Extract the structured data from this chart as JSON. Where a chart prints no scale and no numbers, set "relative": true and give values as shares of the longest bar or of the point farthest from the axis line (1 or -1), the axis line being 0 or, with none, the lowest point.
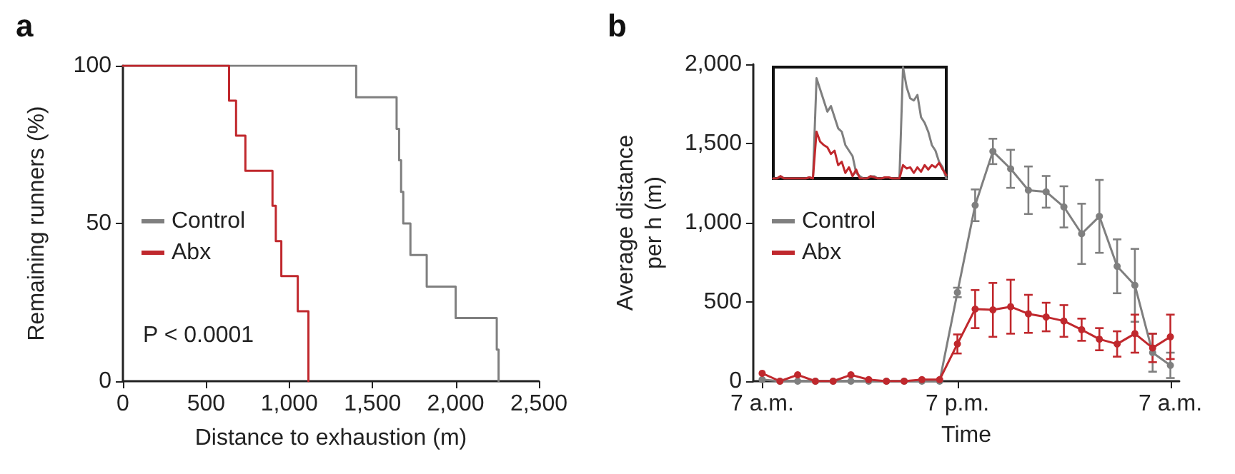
{
  "chart_data": [
    {
      "type": "step",
      "title": "a",
      "xlabel": "Distance to exhaustion (m)",
      "ylabel": "Remaining runners (%)",
      "xlim": [
        0,
        2500
      ],
      "xticks": [
        0,
        500,
        {
          "value": 1000,
          "label": "1,000"
        },
        {
          "value": 1500,
          "label": "1,500"
        },
        {
          "value": 2000,
          "label": "2,000"
        },
        {
          "value": 2500,
          "label": "2,500"
        }
      ],
      "ylim": [
        0,
        100
      ],
      "yticks": [
        0,
        50,
        100
      ],
      "grid": false,
      "legend": "center left",
      "marker": "none",
      "line_style": "solid",
      "annotations": [
        "P < 0.0001"
      ],
      "series": [
        {
          "name": "Control",
          "color": "#7f7f7f",
          "x": [
            0,
            1402,
            1645,
            1660,
            1672,
            1685,
            1728,
            1826,
            2000,
            2247,
            2258
          ],
          "values": [
            100,
            90,
            80,
            70,
            60,
            50,
            40,
            30,
            20,
            10,
            0
          ]
        },
        {
          "name": "Abx",
          "color": "#c0282d",
          "x": [
            0,
            638,
            680,
            736,
            899,
            919,
            952,
            1051,
            1115
          ],
          "values": [
            100,
            88.9,
            77.8,
            66.7,
            55.6,
            44.4,
            33.3,
            22.2,
            0
          ]
        }
      ]
    },
    {
      "type": "line",
      "title": "b",
      "xlabel": "Time",
      "ylabel": "Average distance\nper h (m)",
      "categories": [
        "7 a.m.",
        null,
        null,
        null,
        null,
        null,
        null,
        null,
        null,
        null,
        null,
        "7 p.m.",
        null,
        null,
        null,
        null,
        null,
        null,
        null,
        null,
        null,
        null,
        null,
        "7 a.m."
      ],
      "ylim": [
        0,
        2000
      ],
      "yticks": [
        0,
        {
          "value": 500,
          "label": "500"
        },
        {
          "value": 1000,
          "label": "1,000"
        },
        {
          "value": 1500,
          "label": "1,500"
        },
        {
          "value": 2000,
          "label": "2,000"
        }
      ],
      "grid": false,
      "legend": "center left",
      "marker": "circle",
      "line_style": "solid",
      "series": [
        {
          "name": "Control",
          "color": "#7f7f7f",
          "values": [
            10,
            0,
            0,
            0,
            0,
            0,
            0,
            0,
            0,
            0,
            0,
            560,
            1110,
            1450,
            1340,
            1205,
            1195,
            1100,
            930,
            1040,
            725,
            605,
            180,
            100
          ],
          "errors": [
            null,
            null,
            null,
            null,
            null,
            null,
            null,
            null,
            null,
            null,
            null,
            30,
            100,
            80,
            120,
            150,
            100,
            130,
            190,
            230,
            170,
            230,
            120,
            80
          ]
        },
        {
          "name": "Abx",
          "color": "#c0282d",
          "values": [
            50,
            0,
            40,
            0,
            0,
            40,
            10,
            0,
            0,
            10,
            10,
            235,
            455,
            450,
            470,
            425,
            405,
            380,
            325,
            265,
            235,
            300,
            210,
            280
          ],
          "errors": [
            null,
            null,
            null,
            null,
            null,
            null,
            null,
            null,
            null,
            null,
            null,
            60,
            120,
            170,
            170,
            120,
            90,
            100,
            70,
            70,
            80,
            120,
            90,
            140
          ]
        }
      ]
    },
    {
      "type": "line",
      "relative": true,
      "grid": false,
      "legend": false,
      "marker": "none",
      "line_style": "solid",
      "categories": [
        null,
        null,
        null,
        null,
        null,
        null,
        null,
        null,
        null,
        null,
        null,
        null,
        null,
        null,
        null,
        null,
        null,
        null,
        null,
        null,
        null,
        null,
        null,
        null,
        null,
        null,
        null,
        null,
        null,
        null,
        null,
        null,
        null,
        null,
        null,
        null,
        null,
        null,
        null,
        null,
        null,
        null,
        null,
        null,
        null,
        null,
        null,
        null,
        null
      ],
      "series": [
        {
          "color": "#7f7f7f",
          "values": [
            0,
            0,
            0.02,
            0,
            0,
            0,
            0,
            0,
            0,
            0,
            0.01,
            0,
            0.9,
            0.8,
            0.7,
            0.6,
            0.65,
            0.55,
            0.45,
            0.42,
            0.3,
            0.25,
            0.2,
            0.05,
            0.02,
            0,
            0,
            0.02,
            0.02,
            0,
            0,
            0.01,
            0.01,
            0,
            0,
            0,
            1,
            0.82,
            0.72,
            0.7,
            0.75,
            0.55,
            0.5,
            0.42,
            0.3,
            0.25,
            0.15,
            0.1,
            0
          ]
        },
        {
          "color": "#c0282d",
          "values": [
            0,
            0,
            0.02,
            0,
            0,
            0,
            0,
            0,
            0,
            0,
            0.01,
            0,
            0.42,
            0.33,
            0.3,
            0.28,
            0.22,
            0.25,
            0.12,
            0.15,
            0.05,
            0.1,
            0.02,
            0.08,
            0,
            0,
            0,
            0.02,
            0.01,
            0,
            0,
            0.01,
            0.01,
            0,
            0,
            0,
            0.12,
            0.09,
            0.1,
            0.05,
            0.1,
            0.06,
            0.12,
            0.08,
            0.12,
            0.1,
            0.14,
            0.08,
            0.03
          ]
        }
      ]
    }
  ]
}
